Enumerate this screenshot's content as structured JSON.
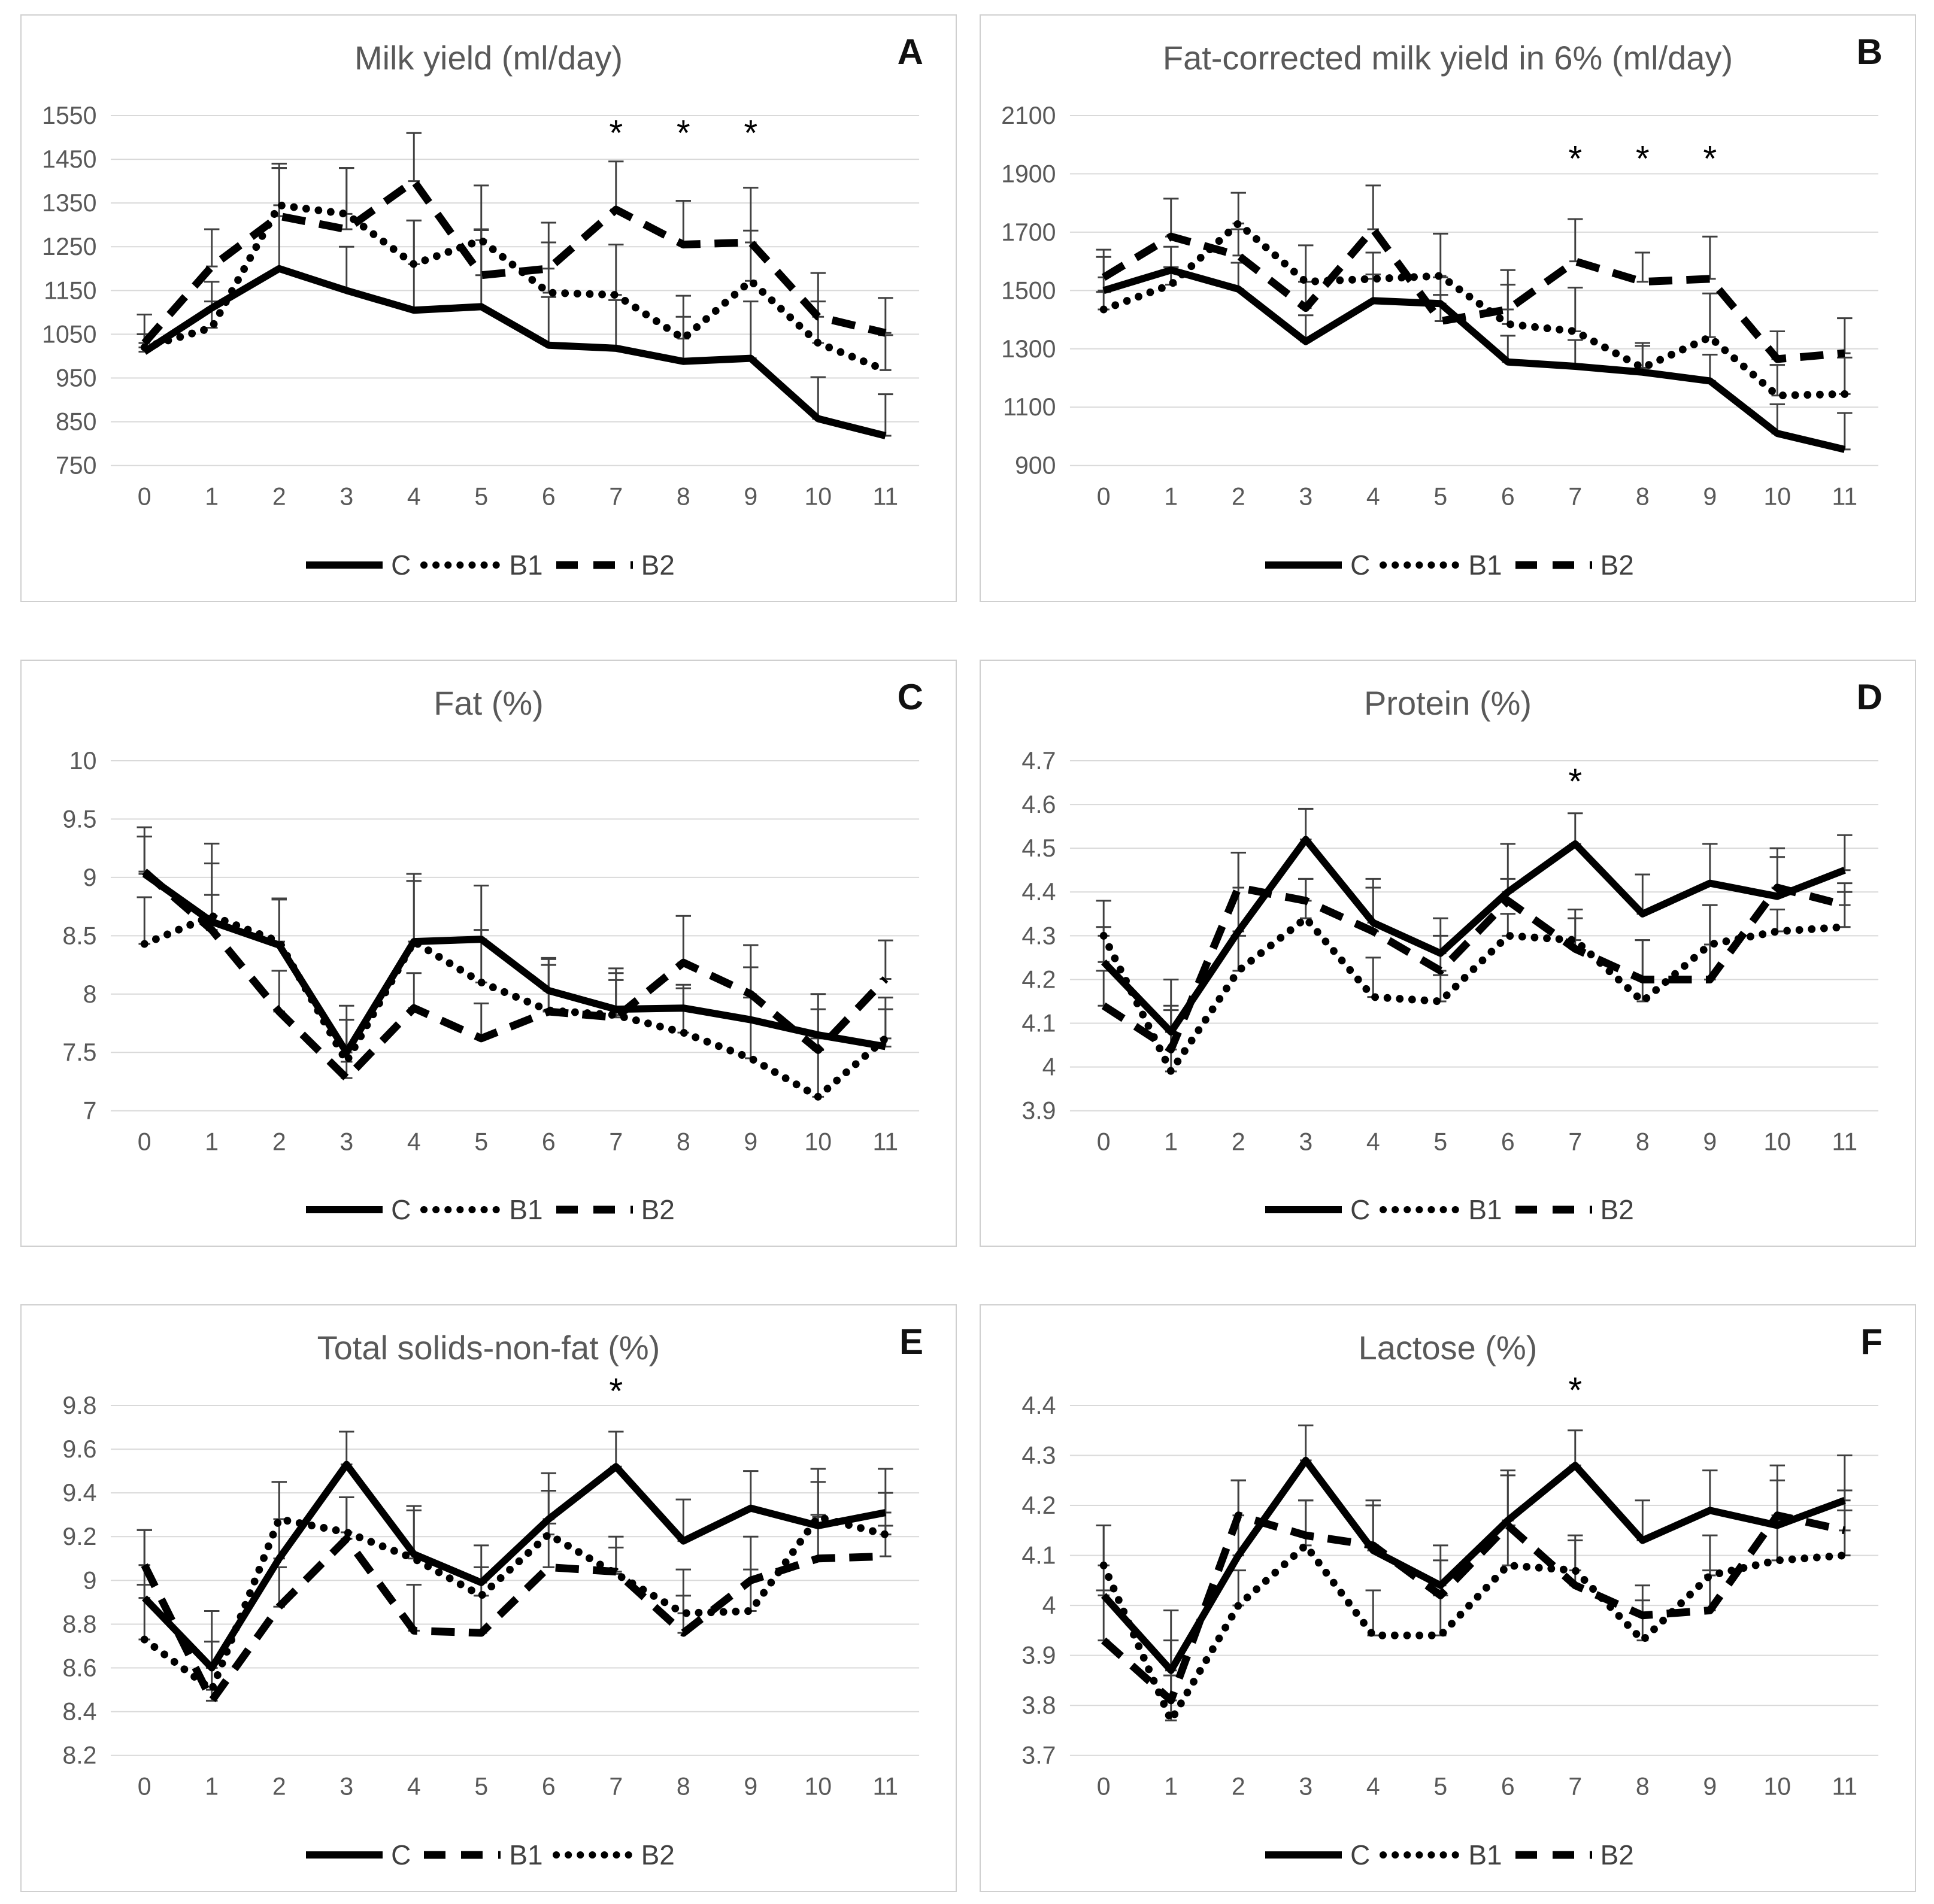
{
  "figure": {
    "background": "#ffffff",
    "panel_border_color": "#cfcfcf",
    "grid_color": "#d9d9d9",
    "axis_text_color": "#595959",
    "series_line_color": "#000000",
    "significance_marker": "*"
  },
  "chart_data": [
    {
      "panel_letter": "A",
      "title": "Milk yield (ml/day)",
      "type": "line",
      "x": [
        "0",
        "1",
        "2",
        "3",
        "4",
        "5",
        "6",
        "7",
        "8",
        "9",
        "10",
        "11"
      ],
      "ylim": [
        750,
        1550
      ],
      "yticks": [
        "750",
        "850",
        "950",
        "1050",
        "1150",
        "1250",
        "1350",
        "1450",
        "1550"
      ],
      "grid": true,
      "legend_position": "bottom",
      "series": [
        {
          "name": "C",
          "style": "solid",
          "values": [
            1010,
            1110,
            1200,
            1150,
            1105,
            1113,
            1025,
            1018,
            988,
            995,
            857,
            818
          ],
          "err_up": [
            85,
            60,
            230,
            100,
            205,
            175,
            110,
            110,
            150,
            130,
            95,
            95
          ]
        },
        {
          "name": "B1",
          "style": "dotted",
          "values": [
            1020,
            1065,
            1345,
            1325,
            1210,
            1265,
            1145,
            1140,
            1040,
            1172,
            1030,
            968
          ],
          "err_up": [
            30,
            60,
            95,
            105,
            100,
            125,
            115,
            115,
            50,
            115,
            95,
            80
          ]
        },
        {
          "name": "B2",
          "style": "dashed",
          "values": [
            1030,
            1205,
            1320,
            1290,
            1400,
            1185,
            1200,
            1335,
            1255,
            1260,
            1090,
            1053
          ],
          "err_up": [
            20,
            85,
            110,
            140,
            110,
            105,
            105,
            110,
            100,
            125,
            100,
            80
          ]
        }
      ],
      "asterisks": {
        "x": [
          7,
          8,
          9
        ],
        "y": 1512
      }
    },
    {
      "panel_letter": "B",
      "title": "Fat-corrected milk yield in 6% (ml/day)",
      "type": "line",
      "x": [
        "0",
        "1",
        "2",
        "3",
        "4",
        "5",
        "6",
        "7",
        "8",
        "9",
        "10",
        "11"
      ],
      "ylim": [
        900,
        2100
      ],
      "yticks": [
        "900",
        "1100",
        "1300",
        "1500",
        "1700",
        "1900",
        "2100"
      ],
      "grid": true,
      "legend_position": "bottom",
      "series": [
        {
          "name": "C",
          "style": "solid",
          "values": [
            1500,
            1570,
            1505,
            1325,
            1465,
            1455,
            1255,
            1240,
            1220,
            1190,
            1010,
            955
          ],
          "err_up": [
            115,
            80,
            90,
            90,
            90,
            90,
            90,
            90,
            90,
            90,
            100,
            125
          ]
        },
        {
          "name": "B1",
          "style": "dotted",
          "values": [
            1435,
            1520,
            1730,
            1530,
            1540,
            1550,
            1385,
            1360,
            1235,
            1340,
            1140,
            1145
          ],
          "err_up": [
            60,
            60,
            105,
            125,
            90,
            145,
            135,
            150,
            85,
            150,
            105,
            125
          ]
        },
        {
          "name": "B2",
          "style": "dashed",
          "values": [
            1545,
            1685,
            1620,
            1440,
            1710,
            1395,
            1435,
            1600,
            1530,
            1540,
            1265,
            1285
          ],
          "err_up": [
            95,
            130,
            90,
            90,
            150,
            90,
            135,
            145,
            100,
            145,
            95,
            120
          ]
        }
      ],
      "asterisks": {
        "x": [
          7,
          8,
          9
        ],
        "y": 1955
      }
    },
    {
      "panel_letter": "C",
      "title": "Fat (%)",
      "type": "line",
      "x": [
        "0",
        "1",
        "2",
        "3",
        "4",
        "5",
        "6",
        "7",
        "8",
        "9",
        "10",
        "11"
      ],
      "ylim": [
        7,
        10
      ],
      "yticks": [
        "7",
        "7.5",
        "8",
        "8.5",
        "9",
        "9.5",
        "10"
      ],
      "grid": true,
      "legend_position": "bottom",
      "series": [
        {
          "name": "C",
          "style": "solid",
          "values": [
            9.03,
            8.62,
            8.42,
            7.5,
            8.45,
            8.47,
            8.03,
            7.87,
            7.88,
            7.78,
            7.65,
            7.55
          ],
          "err_up": [
            0.4,
            0.5,
            0.4,
            0.4,
            0.58,
            0.46,
            0.28,
            0.25,
            0.2,
            0.45,
            0.35,
            0.32
          ]
        },
        {
          "name": "B1",
          "style": "dotted",
          "values": [
            8.43,
            8.67,
            8.45,
            7.42,
            8.45,
            8.1,
            7.86,
            7.82,
            7.67,
            7.45,
            7.12,
            7.62
          ],
          "err_up": [
            0.4,
            0.62,
            0.36,
            0.36,
            0.52,
            0.45,
            0.44,
            0.4,
            0.38,
            0.52,
            0.5,
            0.35
          ]
        },
        {
          "name": "B2",
          "style": "dashed",
          "values": [
            9.05,
            8.55,
            7.85,
            7.28,
            7.88,
            7.62,
            7.85,
            7.8,
            8.27,
            8.0,
            7.52,
            8.13
          ],
          "err_up": [
            0.3,
            0.3,
            0.35,
            0.5,
            0.3,
            0.3,
            0.4,
            0.38,
            0.4,
            0.42,
            0.35,
            0.33
          ]
        }
      ],
      "asterisks": null
    },
    {
      "panel_letter": "D",
      "title": "Protein (%)",
      "type": "line",
      "x": [
        "0",
        "1",
        "2",
        "3",
        "4",
        "5",
        "6",
        "7",
        "8",
        "9",
        "10",
        "11"
      ],
      "ylim": [
        3.9,
        4.7
      ],
      "yticks": [
        "3.9",
        "4",
        "4.1",
        "4.2",
        "4.3",
        "4.4",
        "4.5",
        "4.6",
        "4.7"
      ],
      "grid": true,
      "legend_position": "bottom",
      "series": [
        {
          "name": "C",
          "style": "solid",
          "values": [
            4.24,
            4.08,
            4.31,
            4.52,
            4.33,
            4.26,
            4.4,
            4.51,
            4.35,
            4.42,
            4.39,
            4.45
          ],
          "err_up": [
            0.08,
            0.12,
            0.18,
            0.07,
            0.1,
            0.08,
            0.11,
            0.07,
            0.09,
            0.09,
            0.11,
            0.08
          ]
        },
        {
          "name": "B1",
          "style": "dotted",
          "values": [
            4.3,
            3.99,
            4.22,
            4.34,
            4.16,
            4.15,
            4.3,
            4.29,
            4.15,
            4.28,
            4.31,
            4.32
          ],
          "err_up": [
            0.08,
            0.15,
            0.08,
            0.09,
            0.09,
            0.06,
            0.05,
            0.07,
            0.14,
            0.09,
            0.05,
            0.08
          ]
        },
        {
          "name": "B2",
          "style": "dashed",
          "values": [
            4.14,
            4.04,
            4.41,
            4.38,
            4.31,
            4.22,
            4.38,
            4.27,
            4.2,
            4.2,
            4.41,
            4.37
          ],
          "err_up": [
            0.08,
            0.09,
            0.08,
            0.05,
            0.1,
            0.08,
            0.05,
            0.07,
            0.09,
            0.17,
            0.07,
            0.05
          ]
        }
      ],
      "asterisks": {
        "x": [
          7
        ],
        "y": 4.655
      }
    },
    {
      "panel_letter": "E",
      "title": "Total solids-non-fat (%)",
      "type": "line",
      "x": [
        "0",
        "1",
        "2",
        "3",
        "4",
        "5",
        "6",
        "7",
        "8",
        "9",
        "10",
        "11"
      ],
      "ylim": [
        8.2,
        9.8
      ],
      "yticks": [
        "8.2",
        "8.4",
        "8.6",
        "8.8",
        "9",
        "9.2",
        "9.4",
        "9.6",
        "9.8"
      ],
      "grid": true,
      "legend_position": "bottom",
      "series": [
        {
          "name": "C",
          "style": "solid",
          "values": [
            8.92,
            8.6,
            9.1,
            9.53,
            9.12,
            8.99,
            9.28,
            9.52,
            9.18,
            9.33,
            9.25,
            9.31
          ],
          "err_up": [
            0.31,
            0.26,
            0.35,
            0.15,
            0.22,
            0.17,
            0.21,
            0.16,
            0.19,
            0.17,
            0.26,
            0.2
          ]
        },
        {
          "name": "B1",
          "style": "dashed",
          "values": [
            9.07,
            8.45,
            8.88,
            9.19,
            8.77,
            8.76,
            9.06,
            9.04,
            8.76,
            9.0,
            9.1,
            9.11
          ],
          "err_up": [
            0.16,
            0.27,
            0.18,
            0.19,
            0.21,
            0.17,
            0.2,
            0.16,
            0.17,
            0.2,
            0.2,
            0.14
          ]
        },
        {
          "name": "B2",
          "style": "dotted",
          "values": [
            8.73,
            8.5,
            9.28,
            9.22,
            9.1,
            8.93,
            9.21,
            9.03,
            8.85,
            8.86,
            9.29,
            9.21
          ],
          "err_up": [
            0.25,
            0.22,
            0.17,
            0.16,
            0.22,
            0.13,
            0.2,
            0.12,
            0.2,
            0.19,
            0.16,
            0.19
          ]
        }
      ],
      "asterisks": {
        "x": [
          7
        ],
        "y": 9.87
      }
    },
    {
      "panel_letter": "F",
      "title": "Lactose (%)",
      "type": "line",
      "x": [
        "0",
        "1",
        "2",
        "3",
        "4",
        "5",
        "6",
        "7",
        "8",
        "9",
        "10",
        "11"
      ],
      "ylim": [
        3.7,
        4.4
      ],
      "yticks": [
        "3.7",
        "3.8",
        "3.9",
        "4",
        "4.1",
        "4.2",
        "4.3",
        "4.4"
      ],
      "grid": true,
      "legend_position": "bottom",
      "series": [
        {
          "name": "C",
          "style": "solid",
          "values": [
            4.02,
            3.87,
            4.1,
            4.29,
            4.11,
            4.04,
            4.17,
            4.28,
            4.13,
            4.19,
            4.16,
            4.21
          ],
          "err_up": [
            0.14,
            0.12,
            0.15,
            0.07,
            0.1,
            0.08,
            0.1,
            0.07,
            0.08,
            0.08,
            0.12,
            0.09
          ]
        },
        {
          "name": "B1",
          "style": "dotted",
          "values": [
            4.08,
            3.77,
            4.0,
            4.12,
            3.94,
            3.94,
            4.08,
            4.07,
            3.93,
            4.06,
            4.09,
            4.1
          ],
          "err_up": [
            0.08,
            0.09,
            0.07,
            0.09,
            0.09,
            0.08,
            0.08,
            0.07,
            0.08,
            0.08,
            0.08,
            0.09
          ]
        },
        {
          "name": "B2",
          "style": "dashed",
          "values": [
            3.93,
            3.81,
            4.18,
            4.14,
            4.12,
            4.02,
            4.16,
            4.04,
            3.98,
            3.99,
            4.18,
            4.15
          ],
          "err_up": [
            0.1,
            0.12,
            0.07,
            0.07,
            0.08,
            0.07,
            0.1,
            0.09,
            0.06,
            0.08,
            0.07,
            0.08
          ]
        }
      ],
      "asterisks": {
        "x": [
          7
        ],
        "y": 4.432
      }
    }
  ]
}
